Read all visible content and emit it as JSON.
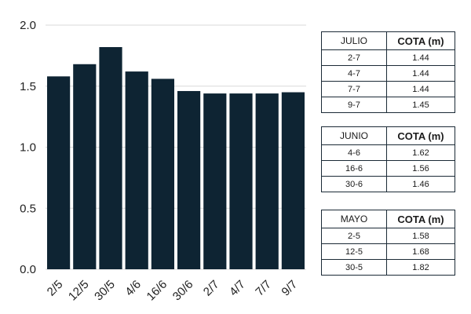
{
  "chart_data": {
    "type": "bar",
    "categories": [
      "2/5",
      "12/5",
      "30/5",
      "4/6",
      "16/6",
      "30/6",
      "2/7",
      "4/7",
      "7/7",
      "9/7"
    ],
    "values": [
      1.58,
      1.68,
      1.82,
      1.62,
      1.56,
      1.46,
      1.44,
      1.44,
      1.44,
      1.45
    ],
    "ylim": [
      0,
      2.0
    ],
    "yticks": [
      "0.0",
      "0.5",
      "1.0",
      "1.5",
      "2.0"
    ],
    "ytick_values": [
      0,
      0.5,
      1.0,
      1.5,
      2.0
    ],
    "grid": "horizontal",
    "bar_color": "#0e2433",
    "grid_color": "#d9d9d9"
  },
  "tables": [
    {
      "header_left": "JULIO",
      "header_right": "COTA (m)",
      "rows": [
        {
          "date": "2-7",
          "value": "1.44"
        },
        {
          "date": "4-7",
          "value": "1.44"
        },
        {
          "date": "7-7",
          "value": "1.44"
        },
        {
          "date": "9-7",
          "value": "1.45"
        }
      ]
    },
    {
      "header_left": "JUNIO",
      "header_right": "COTA (m)",
      "rows": [
        {
          "date": "4-6",
          "value": "1.62"
        },
        {
          "date": "16-6",
          "value": "1.56"
        },
        {
          "date": "30-6",
          "value": "1.46"
        }
      ]
    },
    {
      "header_left": "MAYO",
      "header_right": "COTA (m)",
      "rows": [
        {
          "date": "2-5",
          "value": "1.58"
        },
        {
          "date": "12-5",
          "value": "1.68"
        },
        {
          "date": "30-5",
          "value": "1.82"
        }
      ]
    }
  ]
}
